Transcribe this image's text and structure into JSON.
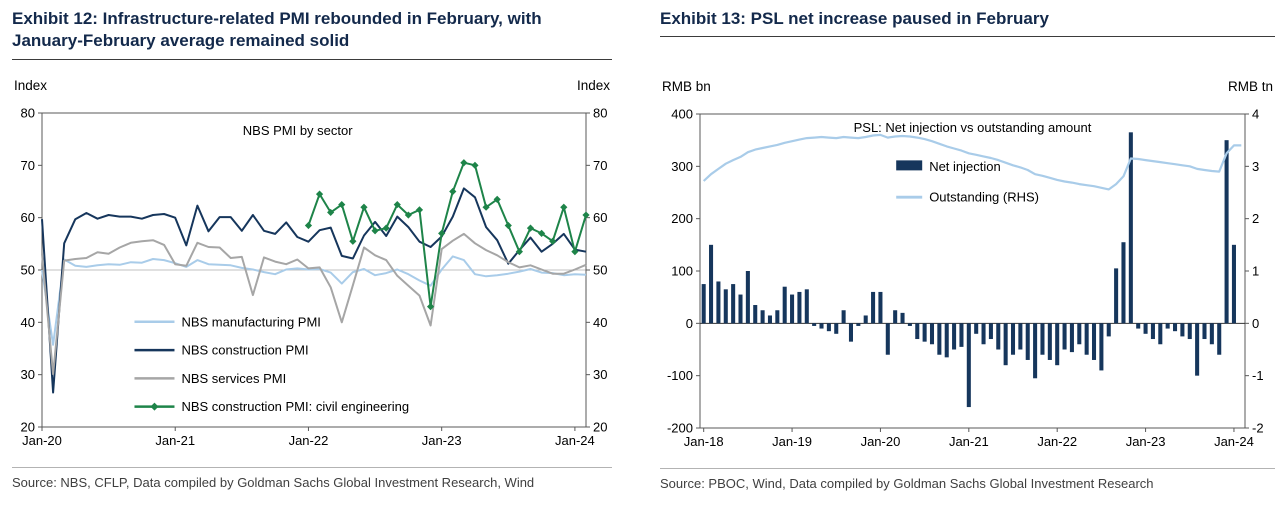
{
  "exhibits": [
    {
      "title": "Exhibit 12: Infrastructure-related PMI rebounded in February, with January-February average remained solid",
      "axis_unit_left": "Index",
      "axis_unit_right": "Index",
      "source": "Source: NBS, CFLP, Data compiled by Goldman Sachs Global Investment Research, Wind"
    },
    {
      "title": "Exhibit 13: PSL net increase paused in February",
      "axis_unit_left": "RMB bn",
      "axis_unit_right": "RMB tn",
      "source": "Source: PBOC, Wind, Data compiled by Goldman Sachs Global Investment Research"
    }
  ],
  "colors": {
    "navy": "#16365C",
    "light_blue": "#A9CCE9",
    "gray": "#A6A6A6",
    "green": "#1E8449",
    "frame": "#595959",
    "reference": "#c0c0c0",
    "zero_line": "#333333"
  },
  "chart_data": [
    {
      "type": "line",
      "title": "NBS PMI by sector",
      "n_points": 50,
      "x_tick_labels": [
        "Jan-20",
        "Jan-21",
        "Jan-22",
        "Jan-23",
        "Jan-24"
      ],
      "x_tick_indices": [
        0,
        12,
        24,
        36,
        48
      ],
      "ylim": [
        20,
        80
      ],
      "yticks": [
        20,
        30,
        40,
        50,
        60,
        70,
        80
      ],
      "reference_line_y": 50,
      "legend_position": "lower-left",
      "series": [
        {
          "name": "NBS manufacturing PMI",
          "color": "#A9CCE9",
          "marker": null,
          "values": [
            50.0,
            35.7,
            52.0,
            50.8,
            50.6,
            50.9,
            51.1,
            51.0,
            51.5,
            51.4,
            52.1,
            51.9,
            51.3,
            50.6,
            51.9,
            51.1,
            51.0,
            50.9,
            50.4,
            50.1,
            49.6,
            49.2,
            50.1,
            50.3,
            50.1,
            50.2,
            49.5,
            47.4,
            49.6,
            50.2,
            49.0,
            49.4,
            50.1,
            49.2,
            48.0,
            47.0,
            50.1,
            52.6,
            51.9,
            49.2,
            48.8,
            49.0,
            49.3,
            49.7,
            50.2,
            49.5,
            49.4,
            49.0,
            49.2,
            49.1
          ]
        },
        {
          "name": "NBS construction PMI",
          "color": "#16365C",
          "marker": null,
          "values": [
            59.7,
            26.6,
            55.1,
            59.7,
            60.9,
            59.8,
            60.5,
            60.2,
            60.2,
            59.8,
            60.5,
            60.7,
            60.0,
            54.7,
            62.3,
            57.4,
            60.1,
            60.1,
            57.5,
            60.5,
            57.5,
            56.9,
            59.1,
            56.3,
            55.4,
            57.6,
            58.1,
            52.7,
            52.2,
            56.6,
            59.2,
            56.5,
            60.2,
            58.2,
            55.4,
            54.4,
            56.4,
            60.2,
            65.6,
            63.9,
            58.2,
            55.7,
            51.2,
            53.8,
            56.2,
            53.5,
            55.0,
            56.9,
            53.9,
            53.5
          ]
        },
        {
          "name": "NBS services PMI",
          "color": "#A6A6A6",
          "marker": null,
          "values": [
            53.1,
            30.1,
            51.8,
            52.1,
            52.3,
            53.4,
            53.1,
            54.3,
            55.2,
            55.5,
            55.7,
            54.8,
            51.1,
            50.8,
            55.2,
            54.4,
            54.3,
            52.3,
            52.5,
            45.2,
            52.4,
            51.6,
            51.1,
            52.0,
            50.3,
            50.5,
            46.7,
            40.0,
            47.1,
            54.3,
            52.8,
            51.9,
            48.9,
            47.0,
            45.1,
            39.4,
            54.0,
            55.6,
            56.9,
            55.1,
            53.8,
            52.8,
            51.5,
            50.5,
            50.9,
            50.1,
            49.3,
            49.3,
            50.1,
            51.0
          ]
        },
        {
          "name": "NBS construction PMI: civil engineering",
          "color": "#1E8449",
          "marker": "diamond",
          "values": [
            null,
            null,
            null,
            null,
            null,
            null,
            null,
            null,
            null,
            null,
            null,
            null,
            null,
            null,
            null,
            null,
            null,
            null,
            null,
            null,
            null,
            null,
            null,
            null,
            58.5,
            64.5,
            61.0,
            62.5,
            55.5,
            62.0,
            57.5,
            58.0,
            62.5,
            60.5,
            61.5,
            43.0,
            57.0,
            65.0,
            70.5,
            70.0,
            62.0,
            63.5,
            58.5,
            53.5,
            58.0,
            57.0,
            55.5,
            62.0,
            53.5,
            60.5
          ]
        }
      ]
    },
    {
      "type": "bar+line",
      "title": "PSL: Net injection vs outstanding amount",
      "n_points": 74,
      "x_tick_labels": [
        "Jan-18",
        "Jan-19",
        "Jan-20",
        "Jan-21",
        "Jan-22",
        "Jan-23",
        "Jan-24"
      ],
      "x_tick_indices": [
        0,
        12,
        24,
        36,
        48,
        60,
        72
      ],
      "ylim_left": [
        -200,
        400
      ],
      "yticks_left": [
        -200,
        -100,
        0,
        100,
        200,
        300,
        400
      ],
      "ylim_right": [
        -2,
        4
      ],
      "yticks_right": [
        -2,
        -1,
        0,
        1,
        2,
        3,
        4
      ],
      "series": [
        {
          "name": "Net injection",
          "kind": "bar",
          "axis": "left",
          "color": "#16365C",
          "values": [
            75,
            150,
            80,
            65,
            75,
            55,
            100,
            35,
            25,
            15,
            25,
            70,
            55,
            60,
            65,
            -5,
            -10,
            -15,
            -20,
            25,
            -35,
            -5,
            15,
            60,
            60,
            -60,
            25,
            20,
            -5,
            -30,
            -35,
            -40,
            -60,
            -65,
            -50,
            -45,
            -160,
            -20,
            -40,
            -30,
            -50,
            -80,
            -60,
            -50,
            -70,
            -105,
            -60,
            -70,
            -80,
            -50,
            -55,
            -40,
            -60,
            -70,
            -90,
            -25,
            105,
            155,
            365,
            -10,
            -20,
            -30,
            -40,
            -10,
            -15,
            -25,
            -30,
            -100,
            -30,
            -40,
            -60,
            350,
            150,
            0
          ]
        },
        {
          "name": "Outstanding (RHS)",
          "kind": "line",
          "axis": "right",
          "color": "#A9CCE9",
          "values": [
            2.72,
            2.85,
            2.95,
            3.05,
            3.12,
            3.18,
            3.27,
            3.32,
            3.35,
            3.38,
            3.41,
            3.45,
            3.48,
            3.51,
            3.54,
            3.55,
            3.56,
            3.55,
            3.54,
            3.56,
            3.55,
            3.54,
            3.56,
            3.59,
            3.6,
            3.55,
            3.57,
            3.58,
            3.57,
            3.55,
            3.52,
            3.48,
            3.43,
            3.38,
            3.34,
            3.3,
            3.25,
            3.22,
            3.19,
            3.16,
            3.12,
            3.07,
            3.02,
            2.98,
            2.93,
            2.85,
            2.82,
            2.78,
            2.74,
            2.71,
            2.69,
            2.66,
            2.64,
            2.62,
            2.59,
            2.56,
            2.66,
            2.81,
            3.15,
            3.14,
            3.12,
            3.1,
            3.08,
            3.06,
            3.04,
            3.02,
            3.0,
            2.95,
            2.93,
            2.91,
            2.9,
            3.25,
            3.4,
            3.4
          ]
        }
      ]
    }
  ]
}
